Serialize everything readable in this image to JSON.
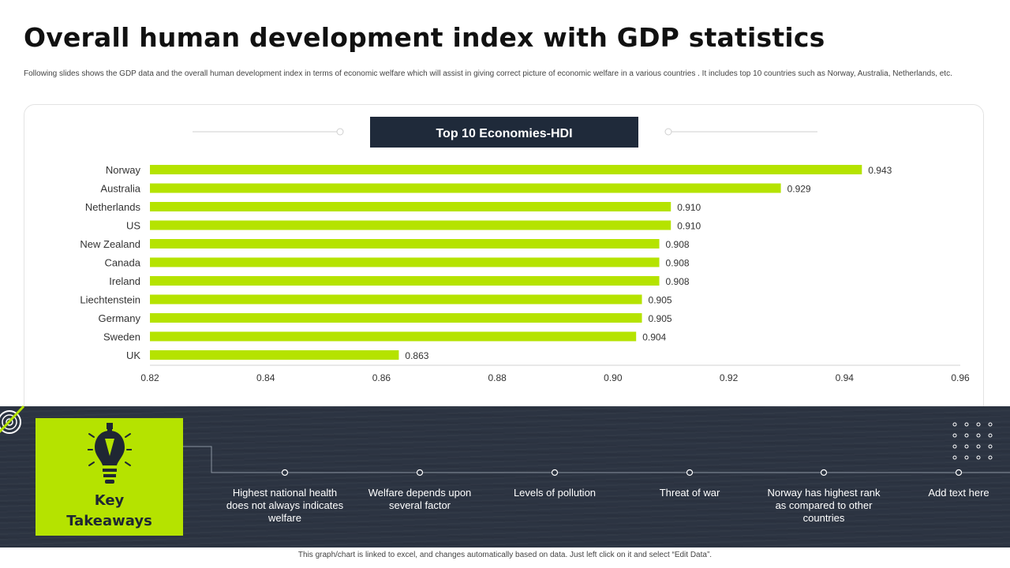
{
  "page": {
    "title": "Overall human development index with GDP statistics",
    "subtitle": "Following slides shows the GDP data and the overall human  development index in  terms of economic  welfare which will assist in giving correct picture of economic welfare in a various countries . It includes top 10 countries such as Norway, Australia, Netherlands, etc.",
    "footnote": "This graph/chart is linked to excel, and changes automatically based on data. Just left click on it and select “Edit Data”."
  },
  "chart_data": {
    "type": "bar",
    "orientation": "horizontal",
    "title": "Top 10 Economies-HDI",
    "categories": [
      "Norway",
      "Australia",
      "Netherlands",
      "US",
      "New Zealand",
      "Canada",
      "Ireland",
      "Liechtenstein",
      "Germany",
      "Sweden",
      "UK"
    ],
    "values": [
      0.943,
      0.929,
      0.91,
      0.91,
      0.908,
      0.908,
      0.908,
      0.905,
      0.905,
      0.904,
      0.863
    ],
    "value_labels": [
      "0.943",
      "0.929",
      "0.910",
      "0.910",
      "0.908",
      "0.908",
      "0.908",
      "0.905",
      "0.905",
      "0.904",
      "0.863"
    ],
    "xlim": [
      0.82,
      0.96
    ],
    "xticks": [
      0.82,
      0.84,
      0.86,
      0.88,
      0.9,
      0.92,
      0.94,
      0.96
    ],
    "xtick_labels": [
      "0.82",
      "0.84",
      "0.86",
      "0.88",
      "0.90",
      "0.92",
      "0.94",
      "0.96"
    ],
    "xlabel": "",
    "ylabel": "",
    "grid": false,
    "bar_color": "#b5e300",
    "title_bg_color": "#1f2a3a"
  },
  "takeaways": {
    "label_line1": "Key",
    "label_line2": "Takeaways",
    "icon": "pencil-lightbulb-icon",
    "items": [
      "Highest national health does not always indicates welfare",
      "Welfare depends upon several factor",
      "Levels of pollution",
      "Threat of war",
      "Norway has highest rank as compared to other countries",
      "Add text here"
    ]
  },
  "colors": {
    "accent": "#b5e300",
    "dark": "#2c3442",
    "title_box": "#1f2a3a"
  }
}
